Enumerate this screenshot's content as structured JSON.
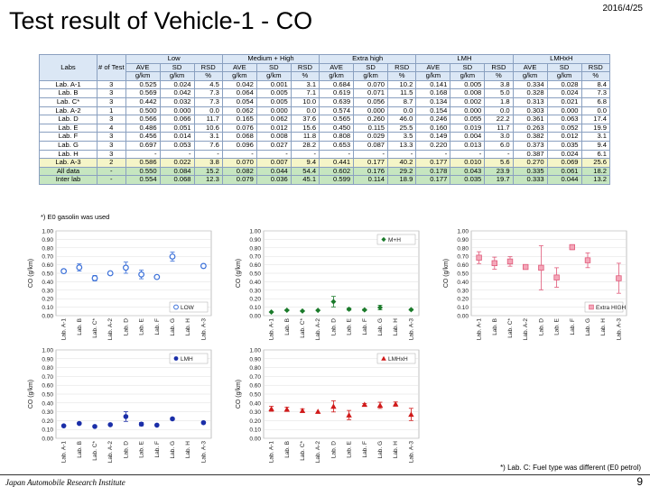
{
  "header": {
    "title": "Test result of Vehicle-1 - CO",
    "date": "2016/4/25"
  },
  "table": {
    "group_headers": [
      "Low",
      "Medium + High",
      "Extra high",
      "LMH",
      "LMHxH"
    ],
    "first_headers": [
      "Labs",
      "# of Test"
    ],
    "sub_headers": [
      "AVE",
      "SD",
      "RSD"
    ],
    "unit_headers": [
      "g/km",
      "g/km",
      "%"
    ],
    "rows": [
      {
        "lab": "Lab. A-1",
        "n": "3",
        "v": [
          "0.525",
          "0.024",
          "4.5",
          "0.042",
          "0.001",
          "3.1",
          "0.684",
          "0.070",
          "10.2",
          "0.141",
          "0.005",
          "3.8",
          "0.334",
          "0.028",
          "8.4"
        ]
      },
      {
        "lab": "Lab. B",
        "n": "3",
        "v": [
          "0.569",
          "0.042",
          "7.3",
          "0.064",
          "0.005",
          "7.1",
          "0.619",
          "0.071",
          "11.5",
          "0.168",
          "0.008",
          "5.0",
          "0.328",
          "0.024",
          "7.3"
        ]
      },
      {
        "lab": "Lab. C*",
        "n": "3",
        "v": [
          "0.442",
          "0.032",
          "7.3",
          "0.054",
          "0.005",
          "10.0",
          "0.639",
          "0.056",
          "8.7",
          "0.134",
          "0.002",
          "1.8",
          "0.313",
          "0.021",
          "6.8"
        ]
      },
      {
        "lab": "Lab. A-2",
        "n": "1",
        "v": [
          "0.500",
          "0.000",
          "0.0",
          "0.062",
          "0.000",
          "0.0",
          "0.574",
          "0.000",
          "0.0",
          "0.154",
          "0.000",
          "0.0",
          "0.303",
          "0.000",
          "0.0"
        ]
      },
      {
        "lab": "Lab. D",
        "n": "3",
        "v": [
          "0.566",
          "0.066",
          "11.7",
          "0.165",
          "0.062",
          "37.6",
          "0.565",
          "0.260",
          "46.0",
          "0.246",
          "0.055",
          "22.2",
          "0.361",
          "0.063",
          "17.4"
        ]
      },
      {
        "lab": "Lab. E",
        "n": "4",
        "v": [
          "0.486",
          "0.051",
          "10.6",
          "0.076",
          "0.012",
          "15.6",
          "0.450",
          "0.115",
          "25.5",
          "0.160",
          "0.019",
          "11.7",
          "0.263",
          "0.052",
          "19.9"
        ]
      },
      {
        "lab": "Lab. F",
        "n": "3",
        "v": [
          "0.456",
          "0.014",
          "3.1",
          "0.068",
          "0.008",
          "11.8",
          "0.808",
          "0.029",
          "3.5",
          "0.149",
          "0.004",
          "3.0",
          "0.382",
          "0.012",
          "3.1"
        ]
      },
      {
        "lab": "Lab. G",
        "n": "3",
        "v": [
          "0.697",
          "0.053",
          "7.6",
          "0.096",
          "0.027",
          "28.2",
          "0.653",
          "0.087",
          "13.3",
          "0.220",
          "0.013",
          "6.0",
          "0.373",
          "0.035",
          "9.4"
        ]
      },
      {
        "lab": "Lab. H",
        "n": "3",
        "v": [
          "-",
          "-",
          "-",
          "-",
          "-",
          "-",
          "-",
          "-",
          "-",
          "-",
          "-",
          "-",
          "0.387",
          "0.024",
          "6.1"
        ]
      },
      {
        "lab": "Lab. A-3",
        "n": "2",
        "v": [
          "0.586",
          "0.022",
          "3.8",
          "0.070",
          "0.007",
          "9.4",
          "0.441",
          "0.177",
          "40.2",
          "0.177",
          "0.010",
          "5.6",
          "0.270",
          "0.069",
          "25.6"
        ],
        "cls": "r-a3"
      },
      {
        "lab": "All data",
        "n": "-",
        "v": [
          "0.550",
          "0.084",
          "15.2",
          "0.082",
          "0.044",
          "54.4",
          "0.602",
          "0.176",
          "29.2",
          "0.178",
          "0.043",
          "23.9",
          "0.335",
          "0.061",
          "18.2"
        ],
        "cls": "r-all"
      },
      {
        "lab": "Inter lab",
        "n": "-",
        "v": [
          "0.554",
          "0.068",
          "12.3",
          "0.079",
          "0.036",
          "45.1",
          "0.599",
          "0.114",
          "18.9",
          "0.177",
          "0.035",
          "19.7",
          "0.333",
          "0.044",
          "13.2"
        ],
        "cls": "r-inter"
      }
    ]
  },
  "footnotes": {
    "gasoline": "*) E0 gasolin was used",
    "fuel_type": "*) Lab. C: Fuel type was different (E0 petrol)"
  },
  "footer": {
    "institute": "Japan Automobile Research Institute",
    "page": "9"
  },
  "chart_data": [
    {
      "type": "scatter",
      "name": "chart-low",
      "legend": "LOW",
      "legend_pos": "bottom-right",
      "ylabel": "CO (g/km)",
      "ylim": [
        0,
        1.0
      ],
      "yticks": [
        "0.00",
        "0.10",
        "0.20",
        "0.30",
        "0.40",
        "0.50",
        "0.60",
        "0.70",
        "0.80",
        "0.90",
        "1.00"
      ],
      "color": "#3a6fd8",
      "marker": "circle-open",
      "categories": [
        "Lab. A-1",
        "Lab. B",
        "Lab. C*",
        "Lab. A-2",
        "Lab. D",
        "Lab. E",
        "Lab. F",
        "Lab. G",
        "Lab. H",
        "Lab. A-3"
      ],
      "values": [
        0.525,
        0.569,
        0.442,
        0.5,
        0.566,
        0.486,
        0.456,
        0.697,
        null,
        0.586
      ],
      "errors": [
        0.024,
        0.042,
        0.032,
        0,
        0.066,
        0.051,
        0.014,
        0.053,
        null,
        0.022
      ]
    },
    {
      "type": "scatter",
      "name": "chart-mh",
      "legend": "M+H",
      "legend_pos": "top-right",
      "ylabel": "CO (g/km)",
      "ylim": [
        0,
        1.0
      ],
      "yticks": [
        "0.00",
        "0.10",
        "0.20",
        "0.30",
        "0.40",
        "0.50",
        "0.60",
        "0.70",
        "0.80",
        "0.90",
        "1.00"
      ],
      "color": "#1a7a2a",
      "marker": "diamond",
      "categories": [
        "Lab. A-1",
        "Lab. B",
        "Lab. C*",
        "Lab. A-2",
        "Lab. D",
        "Lab. E",
        "Lab. F",
        "Lab. G",
        "Lab. H",
        "Lab. A-3"
      ],
      "values": [
        0.042,
        0.064,
        0.054,
        0.062,
        0.165,
        0.076,
        0.068,
        0.096,
        null,
        0.07
      ],
      "errors": [
        0.001,
        0.005,
        0.005,
        0,
        0.062,
        0.012,
        0.008,
        0.027,
        null,
        0.007
      ]
    },
    {
      "type": "scatter",
      "name": "chart-exh",
      "legend": "Extra HIGH",
      "legend_pos": "bottom-right",
      "ylabel": "CO (g/km)",
      "ylim": [
        0,
        1.0
      ],
      "yticks": [
        "0.00",
        "0.10",
        "0.20",
        "0.30",
        "0.40",
        "0.50",
        "0.60",
        "0.70",
        "0.80",
        "0.90",
        "1.00"
      ],
      "color": "#e05a7a",
      "marker": "square",
      "categories": [
        "Lab. A-1",
        "Lab. B",
        "Lab. C*",
        "Lab. A-2",
        "Lab. D",
        "Lab. E",
        "Lab. F",
        "Lab. G",
        "Lab. H",
        "Lab. A-3"
      ],
      "values": [
        0.684,
        0.619,
        0.639,
        0.574,
        0.565,
        0.45,
        0.808,
        0.653,
        null,
        0.441
      ],
      "errors": [
        0.07,
        0.071,
        0.056,
        0,
        0.26,
        0.115,
        0.029,
        0.087,
        null,
        0.177
      ]
    },
    {
      "type": "scatter",
      "name": "chart-lmh",
      "legend": "LMH",
      "legend_pos": "top-right",
      "ylabel": "CO (g/km)",
      "ylim": [
        0,
        1.0
      ],
      "yticks": [
        "0.00",
        "0.10",
        "0.20",
        "0.30",
        "0.40",
        "0.50",
        "0.60",
        "0.70",
        "0.80",
        "0.90",
        "1.00"
      ],
      "color": "#1a2ea8",
      "marker": "circle",
      "categories": [
        "Lab. A-1",
        "Lab. B",
        "Lab. C*",
        "Lab. A-2",
        "Lab. D",
        "Lab. E",
        "Lab. F",
        "Lab. G",
        "Lab. H",
        "Lab. A-3"
      ],
      "values": [
        0.141,
        0.168,
        0.134,
        0.154,
        0.246,
        0.16,
        0.149,
        0.22,
        null,
        0.177
      ],
      "errors": [
        0.005,
        0.008,
        0.002,
        0,
        0.055,
        0.019,
        0.004,
        0.013,
        null,
        0.01
      ]
    },
    {
      "type": "scatter",
      "name": "chart-lmhxh",
      "legend": "LMHxH",
      "legend_pos": "top-right",
      "ylabel": "CO (g/km)",
      "ylim": [
        0,
        1.0
      ],
      "yticks": [
        "0.00",
        "0.10",
        "0.20",
        "0.30",
        "0.40",
        "0.50",
        "0.60",
        "0.70",
        "0.80",
        "0.90",
        "1.00"
      ],
      "color": "#d01a1a",
      "marker": "triangle",
      "categories": [
        "Lab. A-1",
        "Lab. B",
        "Lab. C*",
        "Lab. A-2",
        "Lab. D",
        "Lab. E",
        "Lab. F",
        "Lab. G",
        "Lab. H",
        "Lab. A-3"
      ],
      "values": [
        0.334,
        0.328,
        0.313,
        0.303,
        0.361,
        0.263,
        0.382,
        0.373,
        0.387,
        0.27
      ],
      "errors": [
        0.028,
        0.024,
        0.021,
        0,
        0.063,
        0.052,
        0.012,
        0.035,
        0.024,
        0.069
      ]
    }
  ]
}
